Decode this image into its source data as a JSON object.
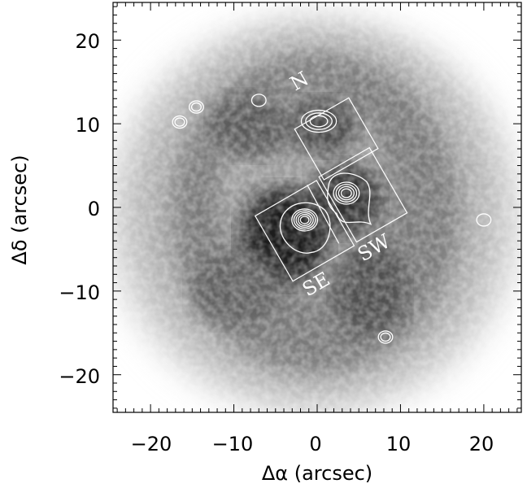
{
  "figure": {
    "x_axis_label": "Δα (arcsec)",
    "y_axis_label": "Δδ (arcsec)",
    "x_ticks": [
      "−20",
      "−10",
      "0",
      "10",
      "20"
    ],
    "y_ticks": [
      "20",
      "10",
      "0",
      "−10",
      "−20"
    ],
    "regions": [
      {
        "label": "N"
      },
      {
        "label": "SE"
      },
      {
        "label": "SW"
      }
    ],
    "colormap": "greyscale (darker = brighter)",
    "contour_color": "#ffffff"
  },
  "chart_data": {
    "type": "heatmap",
    "title": "",
    "xlabel": "Δα (arcsec)",
    "ylabel": "Δδ (arcsec)",
    "xlim": [
      -24.5,
      24.5
    ],
    "ylim": [
      -24.5,
      24.5
    ],
    "x_ticks": [
      -20,
      -10,
      0,
      10,
      20
    ],
    "y_ticks": [
      -20,
      -10,
      0,
      10,
      20
    ],
    "grid": false,
    "legend": "none",
    "description_of_image": "greyscale nebula image with white contour overlay and rectangular slit apertures",
    "regions": [
      {
        "label": "N",
        "center": [
          2.3,
          8.2
        ],
        "width": 7.5,
        "height": 7.0,
        "angle_deg": 30
      },
      {
        "label": "SE",
        "center": [
          -1.5,
          -2.8
        ],
        "width": 8.5,
        "height": 9.0,
        "angle_deg": 30
      },
      {
        "label": "SW",
        "center": [
          5.5,
          1.5
        ],
        "width": 7.0,
        "height": 9.0,
        "angle_deg": 30
      }
    ],
    "contour_peaks": [
      {
        "x": 0.2,
        "y": 10.3
      },
      {
        "x": -1.5,
        "y": -1.5
      },
      {
        "x": 3.5,
        "y": 1.7
      },
      {
        "x": -16.5,
        "y": 10.2
      },
      {
        "x": -14.5,
        "y": 12.0
      },
      {
        "x": -7.0,
        "y": 12.8
      },
      {
        "x": 8.2,
        "y": -15.5
      },
      {
        "x": 20.0,
        "y": -1.5
      }
    ]
  }
}
